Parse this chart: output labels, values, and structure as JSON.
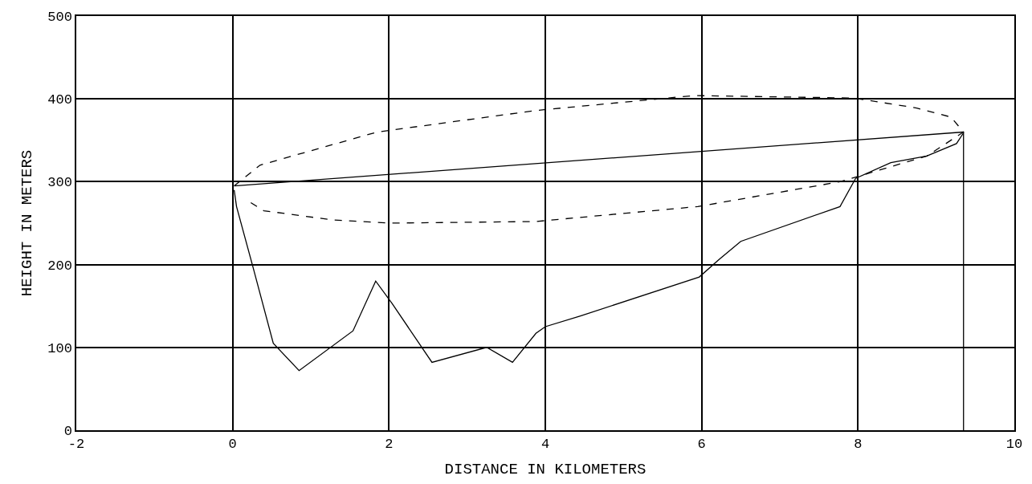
{
  "chart_data": {
    "type": "line",
    "xlabel": "DISTANCE IN KILOMETERS",
    "ylabel": "HEIGHT IN METERS",
    "xlim": [
      -2,
      10
    ],
    "xticks": [
      -2,
      0,
      2,
      4,
      6,
      8,
      10
    ],
    "ylim": [
      0,
      500
    ],
    "yticks": [
      0,
      100,
      200,
      300,
      400,
      500
    ],
    "grid": true,
    "series": [
      {
        "color": "#000000",
        "line_style": "solid",
        "x": [
          0.02,
          0.05,
          0.26,
          0.52,
          0.85,
          1.54,
          1.83,
          2.04,
          2.55,
          3.25,
          3.58,
          3.88,
          4.0,
          4.45,
          5.97,
          6.22,
          6.5,
          7.77,
          7.97,
          8.42,
          8.88,
          9.26,
          9.35
        ],
        "values": [
          290,
          270,
          197,
          105,
          72,
          120,
          180,
          153,
          82,
          100,
          82,
          117,
          125,
          138,
          185,
          206,
          228,
          270,
          304,
          323,
          331,
          346,
          359
        ]
      },
      {
        "color": "#000000",
        "line_style": "solid",
        "x": [
          0.02,
          9.35
        ],
        "values": [
          295,
          360
        ]
      },
      {
        "color": "#000000",
        "line_style": "dashed",
        "x": [
          0.02,
          0.35,
          1.85,
          3.88,
          5.9,
          7.95,
          8.75,
          9.19,
          9.35,
          8.88,
          7.77,
          5.95,
          3.88,
          2.0,
          1.27,
          0.4,
          0.21
        ],
        "values": [
          295,
          320,
          360,
          386,
          404,
          401,
          389,
          378,
          360,
          331,
          300,
          270,
          252,
          250,
          254,
          265,
          276
        ]
      },
      {
        "color": "#000000",
        "line_style": "solid",
        "x": [
          9.35,
          9.35
        ],
        "values": [
          0,
          360
        ]
      }
    ]
  }
}
